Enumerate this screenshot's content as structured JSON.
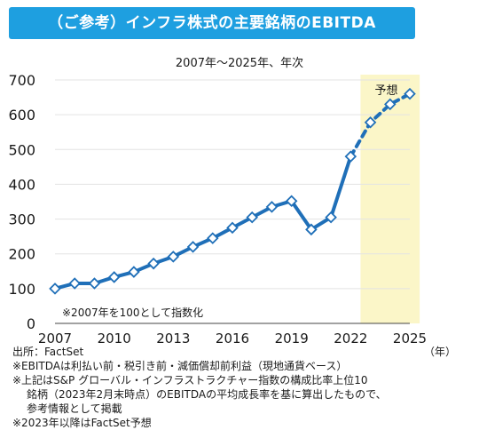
{
  "header": {
    "title": "（ご参考）インフラ株式の主要銘柄のEBITDA",
    "subtitle": "2007年～2025年、年次"
  },
  "colors": {
    "banner": "#1e9fe0",
    "line": "#1f6fb8",
    "marker_fill": "#ffffff",
    "forecast_band": "#fbf6c8",
    "grid": "#e3e3e3"
  },
  "chart_data": {
    "type": "line",
    "title": "（ご参考）インフラ株式の主要銘柄のEBITDA",
    "subtitle": "2007年～2025年、年次",
    "xlabel": "（年）",
    "ylabel": "",
    "ylim": [
      0,
      700
    ],
    "xlim": [
      2007,
      2025
    ],
    "grid": true,
    "y_ticks": [
      "0",
      "100",
      "200",
      "300",
      "400",
      "500",
      "600",
      "700"
    ],
    "x_ticks": [
      "2007",
      "2010",
      "2013",
      "2016",
      "2019",
      "2022",
      "2025"
    ],
    "series": [
      {
        "x": [
          2007,
          2008,
          2009,
          2010,
          2011,
          2012,
          2013,
          2014,
          2015,
          2016,
          2017,
          2018,
          2019,
          2020,
          2021,
          2022
        ],
        "values": [
          100,
          115,
          115,
          133,
          148,
          172,
          192,
          220,
          245,
          275,
          305,
          335,
          352,
          270,
          305,
          480
        ],
        "style": "solid"
      },
      {
        "x": [
          2022,
          2023,
          2024,
          2025
        ],
        "values": [
          480,
          578,
          630,
          660
        ],
        "style": "dashed"
      }
    ],
    "forecast_band": {
      "from": 2022.5,
      "to": 2025.5,
      "label": "予想"
    },
    "inner_note": "※2007年を100として指数化"
  },
  "notes": {
    "source": "出所：FactSet",
    "line1": "※EBITDAは利払い前・税引き前・減価償却前利益（現地通貨ベース）",
    "line2": "※上記はS&P グローバル・インフラストラクチャー指数の構成比率上位10",
    "line3": "銘柄（2023年2月末時点）のEBITDAの平均成長率を基に算出したもので、",
    "line4": "参考情報として掲載",
    "line5": "※2023年以降はFactSet予想",
    "year_unit": "（年）"
  }
}
